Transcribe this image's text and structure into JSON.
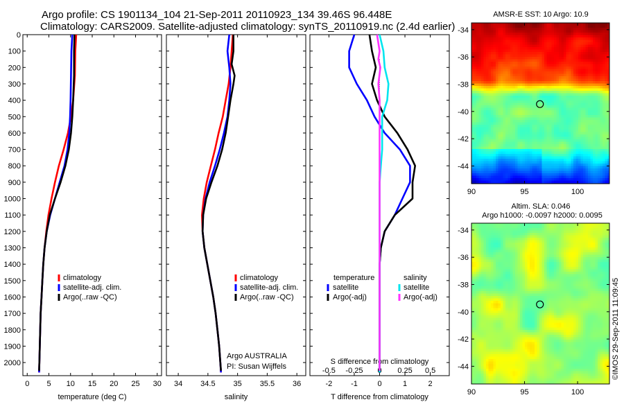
{
  "header": {
    "title_line1": "Argo profile: CS 1901134_104 21-Sep-2011 20110923_134 39.46S 96.448E",
    "title_line2": "Climatology: CARS2009. Satellite-adjusted climatology: synTS_20110919.nc (2.4d earlier)"
  },
  "colors": {
    "climatology": "#ff0000",
    "satellite": "#0000ff",
    "argo": "#000000",
    "sat_salinity": "#00e5ee",
    "argo_salinity": "#ff33ff"
  },
  "chart_data": [
    {
      "id": "temperature",
      "type": "line",
      "xlabel": "temperature (deg C)",
      "ylabel": "",
      "xlim": [
        -1,
        31
      ],
      "ylim": [
        2080,
        0
      ],
      "xticks": [
        0,
        5,
        10,
        15,
        20,
        25,
        30
      ],
      "yticks": [
        0,
        100,
        200,
        300,
        400,
        500,
        600,
        700,
        800,
        900,
        1000,
        1100,
        1200,
        1300,
        1400,
        1500,
        1600,
        1700,
        1800,
        1900,
        2000
      ],
      "legend": [
        "climatology",
        "satellite-adj. clim.",
        "Argo(..raw -QC)"
      ],
      "series": [
        {
          "name": "climatology",
          "color": "#ff0000",
          "points": [
            [
              11.3,
              0
            ],
            [
              11.1,
              100
            ],
            [
              11.0,
              250
            ],
            [
              10.6,
              400
            ],
            [
              10.1,
              500
            ],
            [
              9.4,
              600
            ],
            [
              8.4,
              700
            ],
            [
              7.3,
              800
            ],
            [
              6.4,
              900
            ],
            [
              5.6,
              1000
            ],
            [
              4.9,
              1100
            ],
            [
              4.4,
              1200
            ],
            [
              4.0,
              1300
            ],
            [
              3.7,
              1400
            ],
            [
              3.5,
              1500
            ],
            [
              3.3,
              1600
            ],
            [
              3.1,
              1700
            ],
            [
              3.0,
              1800
            ],
            [
              2.9,
              1900
            ],
            [
              2.8,
              2000
            ],
            [
              2.75,
              2060
            ]
          ]
        },
        {
          "name": "satellite-adj. clim.",
          "color": "#0000ff",
          "points": [
            [
              10.4,
              0
            ],
            [
              10.2,
              100
            ],
            [
              10.1,
              250
            ],
            [
              10.0,
              400
            ],
            [
              9.9,
              500
            ],
            [
              9.7,
              600
            ],
            [
              9.3,
              700
            ],
            [
              8.6,
              800
            ],
            [
              7.5,
              900
            ],
            [
              6.4,
              1000
            ],
            [
              5.3,
              1100
            ],
            [
              4.5,
              1200
            ],
            [
              4.0,
              1300
            ],
            [
              3.7,
              1400
            ],
            [
              3.5,
              1500
            ],
            [
              3.3,
              1600
            ],
            [
              3.1,
              1700
            ],
            [
              3.0,
              1800
            ],
            [
              2.9,
              1900
            ],
            [
              2.8,
              2000
            ],
            [
              2.75,
              2060
            ]
          ]
        },
        {
          "name": "Argo(..raw -QC)",
          "color": "#000000",
          "points": [
            [
              10.9,
              0
            ],
            [
              10.8,
              100
            ],
            [
              10.8,
              250
            ],
            [
              10.6,
              400
            ],
            [
              10.4,
              500
            ],
            [
              10.1,
              600
            ],
            [
              9.6,
              700
            ],
            [
              8.8,
              800
            ],
            [
              7.7,
              900
            ],
            [
              6.4,
              1000
            ],
            [
              5.2,
              1100
            ],
            [
              4.5,
              1200
            ],
            [
              4.0,
              1300
            ],
            [
              3.7,
              1400
            ],
            [
              3.5,
              1500
            ],
            [
              3.3,
              1600
            ],
            [
              3.1,
              1700
            ],
            [
              3.0,
              1800
            ],
            [
              2.9,
              1900
            ],
            [
              2.8,
              2000
            ],
            [
              2.75,
              2050
            ]
          ]
        }
      ]
    },
    {
      "id": "salinity",
      "type": "line",
      "xlabel": "salinity",
      "ylabel": "",
      "xlim": [
        33.8,
        36.15
      ],
      "ylim": [
        2080,
        0
      ],
      "xticks": [
        34,
        34.5,
        35,
        35.5,
        36
      ],
      "xtick_labels": [
        "34",
        "34.5",
        "35",
        "35.5",
        "36"
      ],
      "legend": [
        "climatology",
        "satellite-adj. clim.",
        "Argo(..raw -QC)"
      ],
      "annotation": [
        "Argo AUSTRALIA",
        "PI: Susan Wijffels"
      ],
      "series": [
        {
          "name": "climatology",
          "color": "#ff0000",
          "points": [
            [
              34.92,
              0
            ],
            [
              34.9,
              100
            ],
            [
              34.88,
              200
            ],
            [
              34.85,
              300
            ],
            [
              34.8,
              400
            ],
            [
              34.75,
              500
            ],
            [
              34.68,
              600
            ],
            [
              34.62,
              700
            ],
            [
              34.55,
              800
            ],
            [
              34.48,
              900
            ],
            [
              34.43,
              1000
            ],
            [
              34.4,
              1100
            ],
            [
              34.41,
              1200
            ],
            [
              34.44,
              1300
            ],
            [
              34.49,
              1400
            ],
            [
              34.54,
              1500
            ],
            [
              34.59,
              1600
            ],
            [
              34.63,
              1700
            ],
            [
              34.66,
              1800
            ],
            [
              34.69,
              1900
            ],
            [
              34.71,
              2000
            ],
            [
              34.72,
              2060
            ]
          ]
        },
        {
          "name": "satellite-adj. clim.",
          "color": "#0000ff",
          "points": [
            [
              34.86,
              0
            ],
            [
              34.83,
              100
            ],
            [
              34.86,
              200
            ],
            [
              34.88,
              300
            ],
            [
              34.86,
              400
            ],
            [
              34.83,
              500
            ],
            [
              34.77,
              600
            ],
            [
              34.7,
              700
            ],
            [
              34.62,
              800
            ],
            [
              34.53,
              900
            ],
            [
              34.46,
              1000
            ],
            [
              34.42,
              1100
            ],
            [
              34.41,
              1200
            ],
            [
              34.44,
              1300
            ],
            [
              34.49,
              1400
            ],
            [
              34.54,
              1500
            ],
            [
              34.59,
              1600
            ],
            [
              34.63,
              1700
            ],
            [
              34.66,
              1800
            ],
            [
              34.69,
              1900
            ],
            [
              34.71,
              2000
            ],
            [
              34.72,
              2060
            ]
          ]
        },
        {
          "name": "Argo(..raw -QC)",
          "color": "#000000",
          "points": [
            [
              34.93,
              0
            ],
            [
              34.93,
              100
            ],
            [
              34.9,
              180
            ],
            [
              34.95,
              250
            ],
            [
              34.93,
              300
            ],
            [
              34.88,
              400
            ],
            [
              34.84,
              500
            ],
            [
              34.8,
              600
            ],
            [
              34.74,
              700
            ],
            [
              34.66,
              800
            ],
            [
              34.56,
              900
            ],
            [
              34.47,
              1000
            ],
            [
              34.42,
              1100
            ],
            [
              34.41,
              1200
            ],
            [
              34.44,
              1300
            ],
            [
              34.49,
              1400
            ],
            [
              34.54,
              1500
            ],
            [
              34.59,
              1600
            ],
            [
              34.63,
              1700
            ],
            [
              34.66,
              1800
            ],
            [
              34.69,
              1900
            ],
            [
              34.71,
              2000
            ],
            [
              34.72,
              2050
            ]
          ]
        }
      ]
    },
    {
      "id": "difference",
      "type": "line",
      "xlabel": "T difference from climatology",
      "x2label": "S difference from climatology",
      "xlim": [
        -2.75,
        2.75
      ],
      "ylim": [
        2080,
        0
      ],
      "xticks": [
        -2,
        -1,
        0,
        1,
        2
      ],
      "x2ticks": [
        -0.5,
        -0.25,
        0,
        0.25,
        0.5
      ],
      "x2tick_labels": [
        "-0.5",
        "-0.25",
        "0",
        "0.25",
        "0.5"
      ],
      "x2scale": 4,
      "legend_left_title": "temperature",
      "legend_right_title": "salinity",
      "legend_left": [
        "satellite",
        "Argo(-adj)"
      ],
      "legend_right": [
        "satellite",
        "Argo(-adj)"
      ],
      "series": [
        {
          "name": "temperature satellite",
          "color": "#0000ff",
          "points": [
            [
              -1.0,
              0
            ],
            [
              -1.2,
              100
            ],
            [
              -1.2,
              200
            ],
            [
              -0.9,
              300
            ],
            [
              -0.5,
              400
            ],
            [
              -0.2,
              500
            ],
            [
              0.2,
              600
            ],
            [
              0.8,
              700
            ],
            [
              1.2,
              800
            ],
            [
              1.2,
              900
            ],
            [
              0.9,
              1000
            ],
            [
              0.6,
              1100
            ],
            [
              0.2,
              1200
            ],
            [
              0.05,
              1300
            ],
            [
              0.0,
              1400
            ],
            [
              0.0,
              1500
            ],
            [
              0.0,
              1700
            ],
            [
              0.0,
              1900
            ],
            [
              0.0,
              2060
            ]
          ]
        },
        {
          "name": "temperature Argo(-adj)",
          "color": "#000000",
          "points": [
            [
              -0.4,
              0
            ],
            [
              -0.3,
              100
            ],
            [
              -0.15,
              200
            ],
            [
              -0.3,
              300
            ],
            [
              -0.1,
              400
            ],
            [
              0.2,
              500
            ],
            [
              0.7,
              600
            ],
            [
              1.1,
              700
            ],
            [
              1.4,
              800
            ],
            [
              1.3,
              900
            ],
            [
              1.3,
              1000
            ],
            [
              0.6,
              1100
            ],
            [
              0.2,
              1200
            ],
            [
              0.05,
              1300
            ],
            [
              0.0,
              1400
            ],
            [
              0.0,
              1600
            ],
            [
              0.0,
              1800
            ],
            [
              0.0,
              2000
            ],
            [
              0.0,
              2050
            ]
          ]
        },
        {
          "name": "salinity satellite",
          "color": "#00e5ee",
          "points": [
            [
              0.0,
              0
            ],
            [
              0.15,
              100
            ],
            [
              0.2,
              200
            ],
            [
              0.35,
              300
            ],
            [
              0.3,
              400
            ],
            [
              0.1,
              500
            ],
            [
              0.1,
              600
            ],
            [
              0.1,
              700
            ],
            [
              0.05,
              800
            ],
            [
              0.0,
              900
            ],
            [
              0.0,
              1100
            ],
            [
              0.0,
              1300
            ],
            [
              0.0,
              1500
            ],
            [
              0.0,
              1700
            ],
            [
              0.0,
              1900
            ],
            [
              0.0,
              2060
            ]
          ]
        },
        {
          "name": "salinity Argo(-adj)",
          "color": "#ff33ff",
          "points": [
            [
              -0.1,
              0
            ],
            [
              0.0,
              100
            ],
            [
              -0.05,
              150
            ],
            [
              0.03,
              200
            ],
            [
              -0.05,
              300
            ],
            [
              0.0,
              400
            ],
            [
              0.0,
              600
            ],
            [
              0.0,
              800
            ],
            [
              0.0,
              1000
            ],
            [
              0.0,
              1200
            ],
            [
              0.0,
              1400
            ],
            [
              0.0,
              1600
            ],
            [
              0.0,
              1800
            ],
            [
              0.0,
              2050
            ]
          ]
        }
      ]
    },
    {
      "id": "sst_map",
      "type": "heatmap",
      "title": "AMSR-E SST: 10 Argo: 10.9",
      "xlim": [
        90,
        103
      ],
      "ylim": [
        -45.3,
        -33.5
      ],
      "xticks": [
        90,
        95,
        100
      ],
      "yticks": [
        -34,
        -36,
        -38,
        -40,
        -42,
        -44
      ],
      "marker": [
        96.45,
        -39.46
      ]
    },
    {
      "id": "sla_map",
      "type": "heatmap",
      "title_line1": "Altim. SLA: 0.046",
      "title_line2": "Argo h1000: -0.0097 h2000: 0.0095",
      "xlim": [
        90,
        103
      ],
      "ylim": [
        -45.3,
        -33.5
      ],
      "xticks": [
        90,
        95,
        100
      ],
      "yticks": [
        -34,
        -36,
        -38,
        -40,
        -42,
        -44
      ],
      "marker": [
        96.45,
        -39.46
      ]
    }
  ],
  "footer": {
    "credit": "©IMOS 29-Sep-2011 11:09:45"
  }
}
